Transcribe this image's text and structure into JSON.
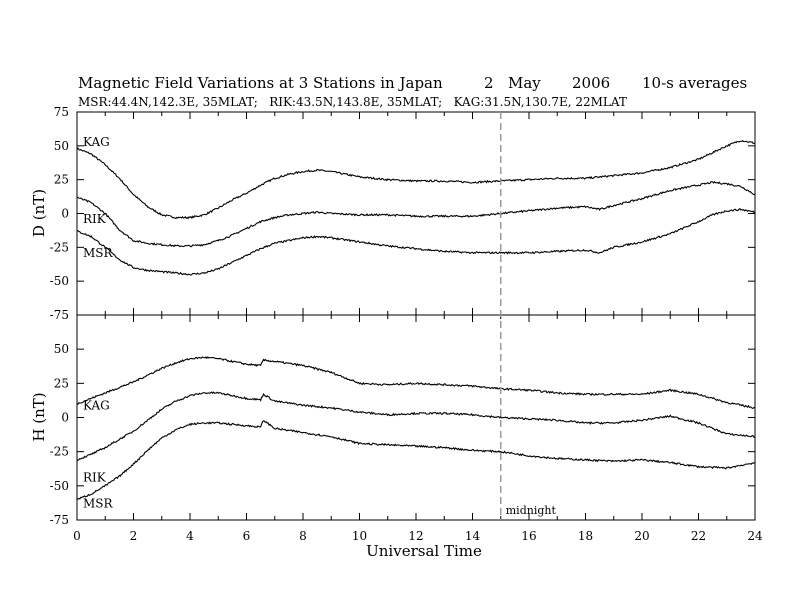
{
  "title": {
    "main": "Magnetic Field Variations at 3 Stations in Japan",
    "day": "2",
    "month": "May",
    "year": "2006",
    "averaging": "10-s averages"
  },
  "subtitle": "MSR:44.4N,142.3E, 35MLAT;   RIK:43.5N,143.8E, 35MLAT;   KAG:31.5N,130.7E, 22MLAT",
  "chart_data": [
    {
      "type": "line",
      "panel": "top",
      "ylabel": "D (nT)",
      "ylim": [
        -75,
        75
      ],
      "yticks": [
        "75",
        "50",
        "25",
        "0",
        "-25",
        "-50",
        "-75"
      ],
      "xlim": [
        0,
        24
      ],
      "series": [
        {
          "name": "KAG",
          "x": [
            0,
            0.5,
            1,
            1.5,
            2,
            2.5,
            3,
            3.5,
            4,
            4.5,
            5,
            5.5,
            6,
            6.5,
            7,
            7.5,
            8,
            8.5,
            9,
            9.5,
            10,
            11,
            12,
            13,
            14,
            15,
            16,
            17,
            18,
            19,
            20,
            21,
            22,
            22.5,
            23,
            23.5,
            24
          ],
          "y": [
            48,
            44,
            36,
            26,
            14,
            5,
            -1,
            -3,
            -3,
            -1,
            4,
            10,
            15,
            21,
            26,
            29,
            31,
            32,
            31,
            29,
            27,
            25,
            24,
            24,
            23,
            24,
            25,
            26,
            26,
            28,
            30,
            34,
            40,
            45,
            50,
            54,
            52
          ]
        },
        {
          "name": "RIK",
          "x": [
            0,
            0.5,
            1,
            1.5,
            2,
            2.5,
            3,
            3.5,
            4,
            4.5,
            5,
            5.5,
            6,
            6.5,
            7,
            7.5,
            8,
            8.5,
            9,
            10,
            11,
            12,
            13,
            14,
            15,
            16,
            17,
            18,
            18.5,
            19,
            20,
            21,
            22,
            22.5,
            23,
            23.5,
            24
          ],
          "y": [
            12,
            8,
            0,
            -12,
            -20,
            -22,
            -23,
            -24,
            -24,
            -23,
            -20,
            -16,
            -11,
            -6,
            -3,
            -1,
            0,
            1,
            0,
            -1,
            -1,
            -2,
            -2,
            -2,
            0,
            2,
            4,
            5,
            3,
            6,
            11,
            17,
            21,
            23,
            22,
            20,
            14
          ]
        },
        {
          "name": "MSR",
          "x": [
            0,
            0.5,
            1,
            1.5,
            2,
            2.5,
            3,
            3.5,
            4,
            4.5,
            5,
            5.5,
            6,
            6.5,
            7,
            7.5,
            8,
            8.5,
            9,
            10,
            11,
            12,
            13,
            14,
            15,
            16,
            17,
            18,
            18.5,
            19,
            20,
            21,
            22,
            22.5,
            23,
            23.5,
            24
          ],
          "y": [
            -13,
            -17,
            -25,
            -34,
            -40,
            -42,
            -43,
            -44,
            -45,
            -44,
            -41,
            -36,
            -31,
            -26,
            -22,
            -20,
            -18,
            -17,
            -18,
            -21,
            -24,
            -26,
            -28,
            -29,
            -29,
            -29,
            -28,
            -27,
            -29,
            -25,
            -21,
            -15,
            -6,
            -1,
            2,
            3,
            1
          ]
        }
      ]
    },
    {
      "type": "line",
      "panel": "bottom",
      "ylabel": "H (nT)",
      "ylim": [
        -75,
        75
      ],
      "yticks": [
        "50",
        "25",
        "0",
        "-25",
        "-50",
        "-75"
      ],
      "xlabel": "Universal Time",
      "xlim": [
        0,
        24
      ],
      "xticks": [
        "0",
        "2",
        "4",
        "6",
        "8",
        "10",
        "12",
        "14",
        "16",
        "18",
        "20",
        "22",
        "24"
      ],
      "series": [
        {
          "name": "KAG",
          "x": [
            0,
            0.5,
            1,
            1.5,
            2,
            2.5,
            3,
            3.5,
            4,
            4.5,
            5,
            5.5,
            6,
            6.5,
            6.6,
            7,
            8,
            9,
            10,
            11,
            12,
            13,
            14,
            15,
            16,
            17,
            18,
            19,
            20,
            21,
            22,
            23,
            24
          ],
          "y": [
            10,
            14,
            18,
            22,
            26,
            31,
            36,
            40,
            43,
            44,
            43,
            41,
            39,
            38,
            42,
            41,
            38,
            33,
            25,
            24,
            25,
            24,
            23,
            21,
            20,
            18,
            17,
            17,
            17,
            20,
            17,
            11,
            7
          ]
        },
        {
          "name": "RIK",
          "x": [
            0,
            0.5,
            1,
            1.5,
            2,
            2.5,
            3,
            3.5,
            4,
            4.5,
            5,
            5.5,
            6,
            6.5,
            6.6,
            7,
            8,
            9,
            10,
            11,
            12,
            13,
            14,
            15,
            16,
            17,
            18,
            19,
            20,
            21,
            22,
            23,
            24
          ],
          "y": [
            -31,
            -27,
            -22,
            -16,
            -10,
            -2,
            6,
            12,
            16,
            18,
            18,
            16,
            14,
            13,
            17,
            12,
            9,
            7,
            4,
            2,
            3,
            3,
            2,
            0,
            -1,
            -2,
            -4,
            -4,
            -2,
            1,
            -4,
            -12,
            -14
          ]
        },
        {
          "name": "MSR",
          "x": [
            0,
            0.5,
            1,
            1.5,
            2,
            2.5,
            3,
            3.5,
            4,
            4.5,
            5,
            5.5,
            6,
            6.5,
            6.6,
            7,
            8,
            9,
            10,
            11,
            12,
            13,
            14,
            15,
            16,
            17,
            18,
            19,
            20,
            21,
            22,
            23,
            24
          ],
          "y": [
            -60,
            -56,
            -50,
            -43,
            -34,
            -24,
            -15,
            -9,
            -5,
            -4,
            -4,
            -5,
            -6,
            -7,
            -2,
            -8,
            -11,
            -14,
            -19,
            -20,
            -21,
            -22,
            -24,
            -25,
            -28,
            -30,
            -31,
            -32,
            -31,
            -33,
            -36,
            -37,
            -33
          ]
        }
      ]
    }
  ],
  "annotation": {
    "label": "midnight",
    "x": 15
  }
}
